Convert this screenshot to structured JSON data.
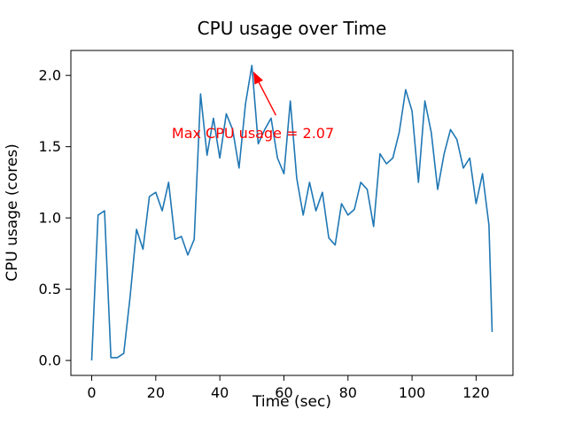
{
  "chart_data": {
    "type": "line",
    "title": "CPU usage over Time",
    "xlabel": "Time (sec)",
    "ylabel": "CPU usage (cores)",
    "xlim": [
      -6.5,
      131.5
    ],
    "ylim": [
      -0.105,
      2.175
    ],
    "xticks": [
      0,
      20,
      40,
      60,
      80,
      100,
      120
    ],
    "yticks": [
      0.0,
      0.5,
      1.0,
      1.5,
      2.0
    ],
    "grid": false,
    "legend": "none",
    "line_color": "#1f77b4",
    "annotation_color": "#ff0000",
    "x": [
      0,
      2,
      4,
      6,
      8,
      10,
      12,
      14,
      16,
      18,
      20,
      22,
      24,
      26,
      28,
      30,
      32,
      34,
      36,
      38,
      40,
      42,
      44,
      46,
      48,
      50,
      52,
      54,
      56,
      58,
      60,
      62,
      64,
      66,
      68,
      70,
      72,
      74,
      76,
      78,
      80,
      82,
      84,
      86,
      88,
      90,
      92,
      94,
      96,
      98,
      100,
      102,
      104,
      106,
      108,
      110,
      112,
      114,
      116,
      118,
      120,
      122,
      124,
      125
    ],
    "y": [
      0.0,
      1.02,
      1.05,
      0.02,
      0.02,
      0.05,
      0.45,
      0.92,
      0.78,
      1.15,
      1.18,
      1.05,
      1.25,
      0.85,
      0.87,
      0.74,
      0.85,
      1.87,
      1.44,
      1.7,
      1.42,
      1.73,
      1.62,
      1.35,
      1.8,
      2.07,
      1.52,
      1.62,
      1.7,
      1.42,
      1.31,
      1.82,
      1.28,
      1.02,
      1.25,
      1.05,
      1.18,
      0.86,
      0.81,
      1.1,
      1.02,
      1.06,
      1.25,
      1.2,
      0.94,
      1.45,
      1.38,
      1.42,
      1.6,
      1.9,
      1.75,
      1.25,
      1.82,
      1.6,
      1.2,
      1.45,
      1.62,
      1.55,
      1.35,
      1.42,
      1.1,
      1.31,
      0.95,
      0.2
    ],
    "max_value": 2.07,
    "annotation": {
      "text": "Max CPU usage = 2.07",
      "text_xy": [
        25,
        1.56
      ],
      "arrow_start": [
        57.5,
        1.72
      ],
      "arrow_end": [
        50.6,
        2.02
      ]
    }
  }
}
